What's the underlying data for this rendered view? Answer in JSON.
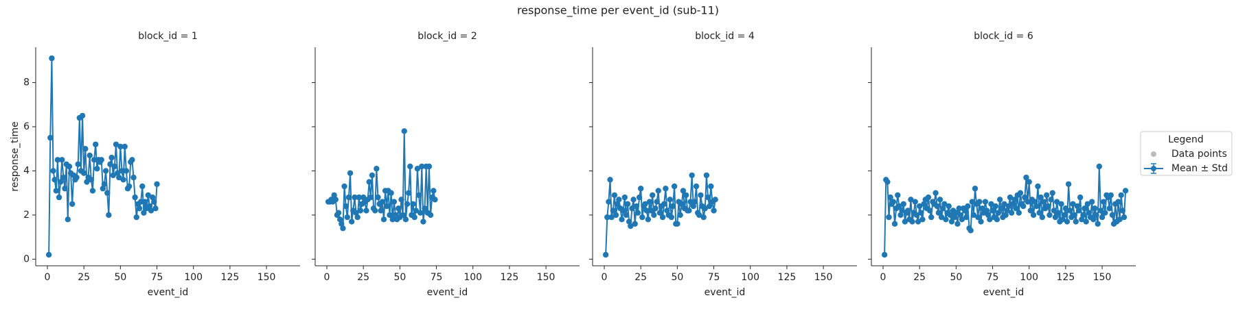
{
  "figure": {
    "title": "response_time per event_id (sub-11)",
    "legend": {
      "title": "Legend",
      "entries": [
        {
          "name": "Data points",
          "color": "#bbbbbb"
        },
        {
          "name": "Mean ± Std",
          "color": "#1f77b4"
        }
      ]
    }
  },
  "chart_data": [
    {
      "type": "line",
      "title": "block_id = 1",
      "xlabel": "event_id",
      "ylabel": "response_time",
      "x": [
        1,
        2,
        3,
        4,
        5,
        6,
        7,
        8,
        9,
        10,
        11,
        12,
        13,
        14,
        15,
        16,
        17,
        18,
        19,
        20,
        21,
        22,
        23,
        24,
        25,
        26,
        27,
        28,
        29,
        30,
        31,
        32,
        33,
        34,
        35,
        36,
        37,
        38,
        39,
        40,
        41,
        42,
        43,
        44,
        45,
        46,
        47,
        48,
        49,
        50,
        51,
        52,
        53,
        54,
        55,
        56,
        57,
        58,
        59,
        60,
        61,
        62,
        63,
        64,
        65,
        66,
        67,
        68,
        69,
        70,
        71,
        72,
        73,
        74,
        75
      ],
      "series": [
        {
          "color": "#1f77b4",
          "values": [
            0.2,
            5.5,
            9.1,
            4.0,
            3.6,
            3.1,
            4.5,
            2.8,
            3.5,
            4.5,
            3.7,
            3.2,
            4.3,
            1.8,
            4.2,
            3.9,
            2.5,
            3.8,
            3.6,
            3.7,
            4.3,
            6.4,
            4.0,
            6.5,
            3.9,
            5.0,
            3.5,
            3.7,
            4.7,
            3.6,
            3.1,
            4.5,
            5.2,
            4.1,
            4.5,
            4.4,
            4.5,
            3.2,
            3.4,
            4.0,
            3.0,
            2.0,
            4.3,
            4.6,
            3.8,
            4.2,
            5.2,
            3.9,
            3.7,
            5.1,
            4.0,
            3.6,
            5.1,
            4.0,
            3.2,
            3.3,
            4.4,
            4.5,
            3.7,
            2.8,
            1.9,
            2.5,
            2.3,
            2.6,
            3.3,
            2.1,
            2.6,
            2.3,
            2.9,
            2.4,
            2.2,
            2.8,
            2.6,
            2.3,
            3.4
          ]
        }
      ],
      "xlim": [
        -8,
        173
      ],
      "ylim": [
        -0.3,
        9.6
      ],
      "xticks": [
        0,
        25,
        50,
        75,
        100,
        125,
        150
      ],
      "yticks": [
        0,
        2,
        4,
        6,
        8
      ]
    },
    {
      "type": "line",
      "title": "block_id = 2",
      "xlabel": "event_id",
      "x": [
        1,
        2,
        3,
        4,
        5,
        6,
        7,
        8,
        9,
        10,
        11,
        12,
        13,
        14,
        15,
        16,
        17,
        18,
        19,
        20,
        21,
        22,
        23,
        24,
        25,
        26,
        27,
        28,
        29,
        30,
        31,
        32,
        33,
        34,
        35,
        36,
        37,
        38,
        39,
        40,
        41,
        42,
        43,
        44,
        45,
        46,
        47,
        48,
        49,
        50,
        51,
        52,
        53,
        54,
        55,
        56,
        57,
        58,
        59,
        60,
        61,
        62,
        63,
        64,
        65,
        66,
        67,
        68,
        69,
        70,
        71,
        72,
        73,
        74
      ],
      "series": [
        {
          "color": "#1f77b4",
          "values": [
            2.6,
            2.6,
            2.7,
            2.6,
            2.9,
            2.7,
            2.0,
            2.1,
            1.8,
            1.6,
            1.4,
            3.3,
            2.4,
            1.9,
            2.8,
            3.9,
            1.7,
            2.2,
            2.8,
            2.1,
            1.9,
            2.8,
            2.2,
            2.5,
            2.8,
            2.6,
            2.2,
            2.7,
            3.5,
            2.8,
            3.8,
            2.3,
            2.2,
            4.1,
            2.8,
            2.5,
            2.2,
            2.6,
            1.8,
            3.1,
            2.4,
            3.1,
            2.0,
            3.0,
            1.8,
            2.6,
            2.0,
            1.8,
            2.3,
            1.9,
            2.7,
            2.0,
            5.8,
            1.8,
            2.5,
            3.0,
            4.2,
            2.0,
            2.5,
            1.9,
            2.2,
            4.1,
            2.9,
            2.1,
            4.2,
            1.7,
            2.3,
            4.2,
            2.1,
            4.2,
            2.0,
            2.8,
            3.1,
            2.7
          ]
        }
      ],
      "xlim": [
        -8,
        173
      ],
      "ylim": [
        -0.3,
        9.6
      ],
      "xticks": [
        0,
        25,
        50,
        75,
        100,
        125,
        150
      ]
    },
    {
      "type": "line",
      "title": "block_id = 4",
      "xlabel": "event_id",
      "x": [
        1,
        2,
        3,
        4,
        5,
        6,
        7,
        8,
        9,
        10,
        11,
        12,
        13,
        14,
        15,
        16,
        17,
        18,
        19,
        20,
        21,
        22,
        23,
        24,
        25,
        26,
        27,
        28,
        29,
        30,
        31,
        32,
        33,
        34,
        35,
        36,
        37,
        38,
        39,
        40,
        41,
        42,
        43,
        44,
        45,
        46,
        47,
        48,
        49,
        50,
        51,
        52,
        53,
        54,
        55,
        56,
        57,
        58,
        59,
        60,
        61,
        62,
        63,
        64,
        65,
        66,
        67,
        68,
        69,
        70,
        71,
        72,
        73,
        74,
        75,
        76
      ],
      "series": [
        {
          "color": "#1f77b4",
          "values": [
            0.2,
            1.9,
            2.6,
            3.6,
            1.9,
            2.2,
            2.9,
            2.0,
            2.5,
            2.7,
            2.3,
            1.8,
            2.2,
            2.8,
            2.0,
            2.5,
            1.7,
            1.5,
            2.3,
            2.7,
            1.6,
            2.4,
            2.1,
            2.8,
            3.2,
            1.9,
            2.4,
            2.5,
            2.2,
            1.8,
            2.6,
            2.2,
            2.9,
            2.0,
            2.3,
            2.6,
            3.1,
            2.1,
            2.4,
            1.9,
            2.5,
            3.2,
            2.2,
            2.0,
            2.7,
            1.9,
            2.4,
            3.3,
            1.6,
            1.6,
            2.6,
            2.0,
            2.5,
            3.1,
            2.3,
            2.9,
            2.2,
            2.2,
            2.6,
            3.8,
            2.4,
            2.6,
            3.3,
            2.1,
            2.0,
            2.9,
            2.4,
            1.9,
            2.3,
            3.8,
            2.8,
            2.4,
            3.3,
            2.6,
            2.2,
            2.7
          ]
        }
      ],
      "xlim": [
        -8,
        173
      ],
      "ylim": [
        -0.3,
        9.6
      ],
      "xticks": [
        0,
        25,
        50,
        75,
        100,
        125,
        150
      ]
    },
    {
      "type": "line",
      "title": "block_id = 6",
      "xlabel": "event_id",
      "x": [
        1,
        2,
        3,
        4,
        5,
        6,
        7,
        8,
        9,
        10,
        11,
        12,
        13,
        14,
        15,
        16,
        17,
        18,
        19,
        20,
        21,
        22,
        23,
        24,
        25,
        26,
        27,
        28,
        29,
        30,
        31,
        32,
        33,
        34,
        35,
        36,
        37,
        38,
        39,
        40,
        41,
        42,
        43,
        44,
        45,
        46,
        47,
        48,
        49,
        50,
        51,
        52,
        53,
        54,
        55,
        56,
        57,
        58,
        59,
        60,
        61,
        62,
        63,
        64,
        65,
        66,
        67,
        68,
        69,
        70,
        71,
        72,
        73,
        74,
        75,
        76,
        77,
        78,
        79,
        80,
        81,
        82,
        83,
        84,
        85,
        86,
        87,
        88,
        89,
        90,
        91,
        92,
        93,
        94,
        95,
        96,
        97,
        98,
        99,
        100,
        101,
        102,
        103,
        104,
        105,
        106,
        107,
        108,
        109,
        110,
        111,
        112,
        113,
        114,
        115,
        116,
        117,
        118,
        119,
        120,
        121,
        122,
        123,
        124,
        125,
        126,
        127,
        128,
        129,
        130,
        131,
        132,
        133,
        134,
        135,
        136,
        137,
        138,
        139,
        140,
        141,
        142,
        143,
        144,
        145,
        146,
        147,
        148,
        149,
        150,
        151,
        152,
        153,
        154,
        155,
        156,
        157,
        158,
        159,
        160,
        161,
        162,
        163,
        164,
        165,
        166
      ],
      "series": [
        {
          "color": "#1f77b4",
          "values": [
            0.2,
            3.6,
            3.5,
            1.9,
            2.8,
            2.5,
            2.6,
            1.6,
            2.3,
            2.9,
            2.4,
            2.0,
            2.2,
            2.5,
            1.7,
            2.1,
            2.2,
            1.8,
            2.7,
            1.7,
            2.1,
            2.6,
            2.0,
            1.7,
            2.4,
            2.1,
            1.8,
            2.5,
            2.7,
            2.3,
            2.8,
            2.2,
            1.9,
            2.6,
            2.5,
            3.0,
            2.4,
            2.1,
            2.7,
            1.9,
            2.3,
            2.5,
            1.8,
            2.1,
            2.4,
            2.0,
            1.7,
            2.2,
            1.9,
            2.1,
            1.6,
            2.3,
            2.0,
            1.8,
            2.3,
            2.2,
            1.9,
            2.4,
            1.4,
            1.3,
            2.6,
            2.0,
            3.2,
            2.5,
            1.9,
            2.6,
            1.7,
            2.3,
            2.1,
            2.6,
            2.2,
            2.0,
            1.8,
            2.5,
            2.2,
            1.9,
            2.4,
            1.8,
            2.1,
            2.7,
            2.3,
            1.9,
            2.5,
            2.0,
            2.2,
            2.4,
            2.8,
            2.1,
            2.5,
            2.7,
            2.3,
            2.9,
            2.1,
            3.0,
            2.5,
            2.4,
            2.8,
            3.7,
            2.6,
            3.5,
            2.2,
            2.7,
            2.0,
            2.6,
            2.4,
            3.3,
            2.1,
            2.8,
            1.9,
            2.6,
            2.3,
            2.9,
            2.4,
            2.0,
            2.7,
            3.0,
            2.2,
            1.9,
            2.6,
            2.1,
            1.7,
            2.5,
            1.8,
            2.0,
            2.3,
            1.7,
            3.4,
            2.2,
            1.9,
            2.5,
            2.0,
            1.7,
            2.4,
            2.2,
            2.8,
            1.8,
            2.0,
            2.3,
            1.7,
            2.5,
            2.1,
            1.9,
            2.6,
            1.8,
            2.3,
            2.0,
            1.6,
            4.2,
            2.2,
            1.9,
            2.6,
            2.1,
            2.9,
            2.8,
            2.3,
            2.9,
            2.0,
            1.6,
            2.5,
            1.7,
            2.6,
            1.8,
            2.9,
            2.2,
            1.9,
            3.1
          ]
        }
      ],
      "xlim": [
        -8,
        173
      ],
      "ylim": [
        -0.3,
        9.6
      ],
      "xticks": [
        0,
        25,
        50,
        75,
        100,
        125,
        150
      ]
    }
  ]
}
